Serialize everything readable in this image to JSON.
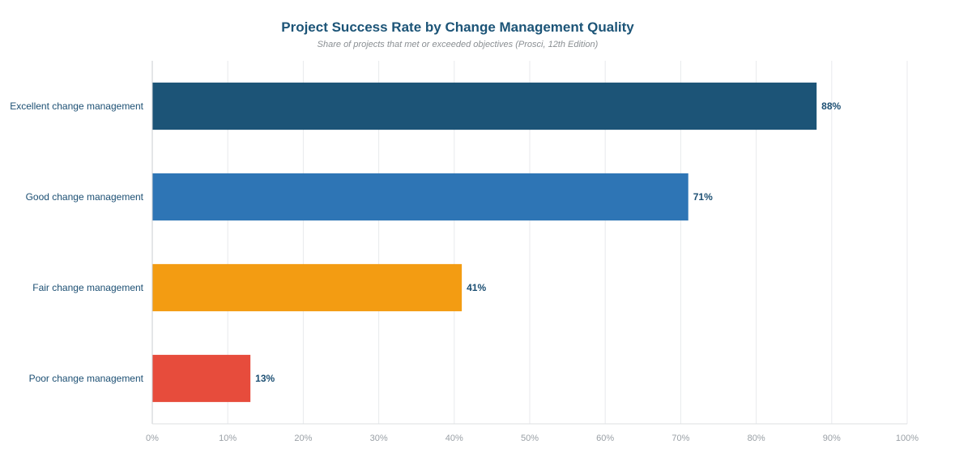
{
  "chart_data": {
    "type": "bar",
    "orientation": "horizontal",
    "title": "Project Success Rate by Change Management Quality",
    "subtitle": "Share of projects that met or exceeded objectives (Prosci, 12th Edition)",
    "categories": [
      "Excellent change management",
      "Good change management",
      "Fair change management",
      "Poor change management"
    ],
    "values": [
      88,
      71,
      41,
      13
    ],
    "value_labels": [
      "88%",
      "71%",
      "41%",
      "13%"
    ],
    "colors": [
      "#1c5477",
      "#2e75b5",
      "#f39c12",
      "#e74c3c"
    ],
    "xlim": [
      0,
      100
    ],
    "x_ticks": [
      0,
      10,
      20,
      30,
      40,
      50,
      60,
      70,
      80,
      90,
      100
    ],
    "x_tick_labels": [
      "0%",
      "10%",
      "20%",
      "30%",
      "40%",
      "50%",
      "60%",
      "70%",
      "80%",
      "90%",
      "100%"
    ],
    "grid": true,
    "legend": "none"
  }
}
